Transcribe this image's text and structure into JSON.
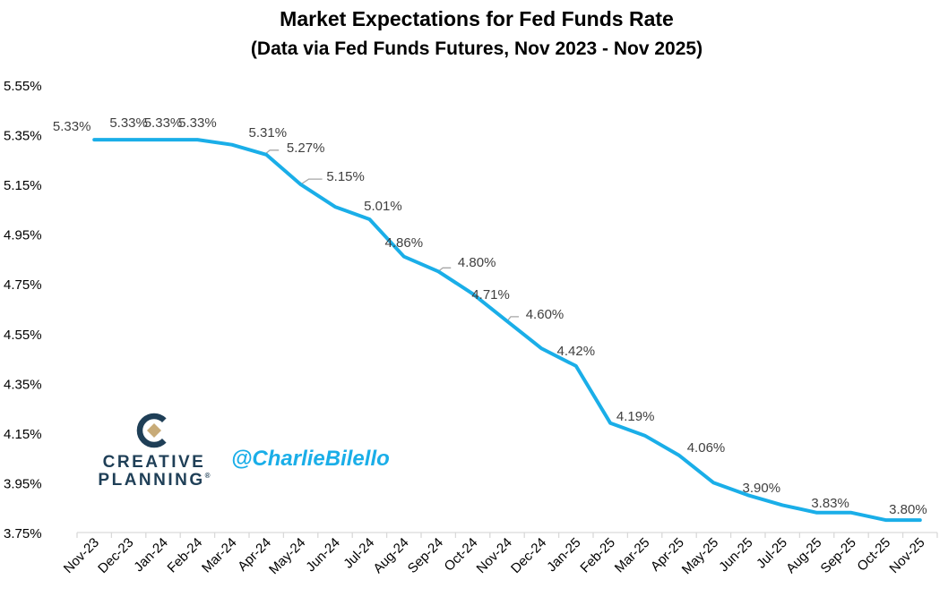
{
  "chart_data": {
    "type": "line",
    "title": "Market Expectations for Fed Funds Rate",
    "subtitle": "(Data via Fed Funds Futures, Nov 2023 - Nov 2025)",
    "xlabel": "",
    "ylabel": "",
    "categories": [
      "Nov-23",
      "Dec-23",
      "Jan-24",
      "Feb-24",
      "Mar-24",
      "Apr-24",
      "May-24",
      "Jun-24",
      "Jul-24",
      "Aug-24",
      "Sep-24",
      "Oct-24",
      "Nov-24",
      "Dec-24",
      "Jan-25",
      "Feb-25",
      "Mar-25",
      "Apr-25",
      "May-25",
      "Jun-25",
      "Jul-25",
      "Aug-25",
      "Sep-25",
      "Oct-25",
      "Nov-25"
    ],
    "series": [
      {
        "values": [
          5.33,
          5.33,
          5.33,
          5.33,
          5.31,
          5.27,
          5.15,
          5.06,
          5.01,
          4.86,
          4.8,
          4.71,
          4.6,
          4.49,
          4.42,
          4.19,
          4.14,
          4.06,
          3.95,
          3.9,
          3.86,
          3.83,
          3.83,
          3.8,
          3.8
        ],
        "color": "#1aaee8"
      }
    ],
    "data_labels": [
      {
        "index": 0,
        "text": "5.33%"
      },
      {
        "index": 1,
        "text": "5.33%"
      },
      {
        "index": 2,
        "text": "5.33%"
      },
      {
        "index": 3,
        "text": "5.33%"
      },
      {
        "index": 4,
        "text": "5.31%"
      },
      {
        "index": 5,
        "text": "5.27%"
      },
      {
        "index": 6,
        "text": "5.15%"
      },
      {
        "index": 8,
        "text": "5.01%"
      },
      {
        "index": 9,
        "text": "4.86%"
      },
      {
        "index": 10,
        "text": "4.80%"
      },
      {
        "index": 11,
        "text": "4.71%"
      },
      {
        "index": 12,
        "text": "4.60%"
      },
      {
        "index": 14,
        "text": "4.42%"
      },
      {
        "index": 15,
        "text": "4.19%"
      },
      {
        "index": 17,
        "text": "4.06%"
      },
      {
        "index": 19,
        "text": "3.90%"
      },
      {
        "index": 21,
        "text": "3.83%"
      },
      {
        "index": 23,
        "text": "3.80%"
      }
    ],
    "yticks": [
      "3.75%",
      "3.95%",
      "4.15%",
      "4.35%",
      "4.55%",
      "4.75%",
      "4.95%",
      "5.15%",
      "5.35%",
      "5.55%"
    ],
    "ylim": [
      3.75,
      5.55
    ],
    "grid": false,
    "legend": "none"
  },
  "branding": {
    "brand_line1": "CREATIVE",
    "brand_line2": "PLANNING",
    "brand_mark": "®",
    "handle": "@CharlieBilello",
    "logo_icon": "creative-planning-logo-icon",
    "colors": {
      "navy": "#1f3f57",
      "gold": "#c8ab78",
      "handle": "#1aaee8",
      "line": "#1aaee8",
      "axis": "#d9d9d9",
      "label_text": "#404040",
      "leader": "#a6a6a6"
    }
  }
}
